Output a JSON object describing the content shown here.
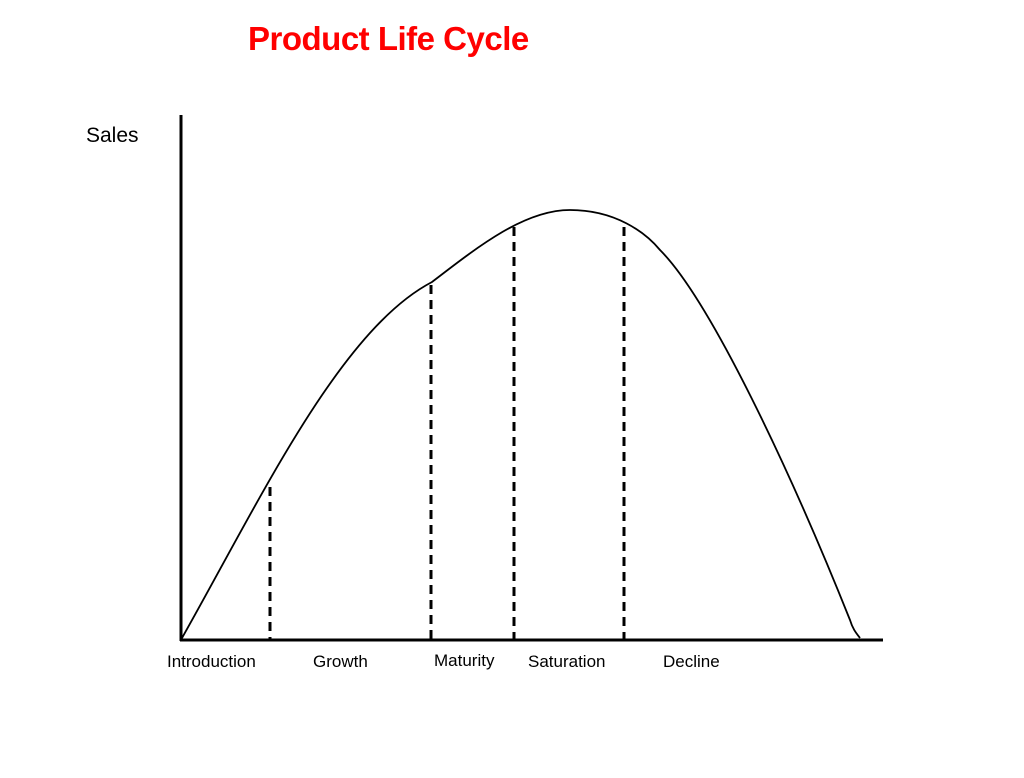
{
  "title": "Product Life Cycle",
  "title_color": "#ff0000",
  "y_axis_label": "Sales",
  "stages": [
    {
      "label": "Introduction"
    },
    {
      "label": "Growth"
    },
    {
      "label": "Maturity"
    },
    {
      "label": "Saturation"
    },
    {
      "label": "Decline"
    }
  ],
  "line_color": "#000000"
}
